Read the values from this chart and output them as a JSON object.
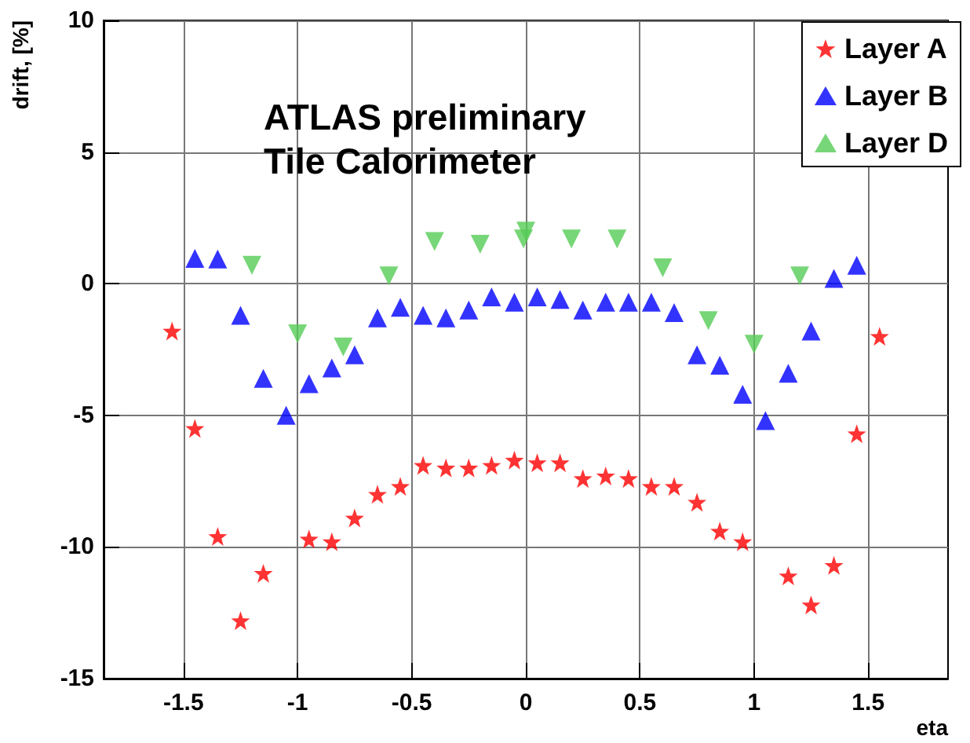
{
  "chart_data": {
    "type": "scatter",
    "xlabel": "eta",
    "ylabel": "drift, [%]",
    "annotations": [
      "ATLAS preliminary",
      "Tile Calorimeter"
    ],
    "xlim": [
      -1.85,
      1.85
    ],
    "xticks": [
      -1.5,
      -1,
      -0.5,
      0,
      0.5,
      1,
      1.5
    ],
    "ylim": [
      -15,
      10
    ],
    "yticks": [
      -15,
      -10,
      -5,
      0,
      5,
      10
    ],
    "grid": true,
    "legend": "top right",
    "series": [
      {
        "name": "Layer A",
        "color": "#ff0000",
        "marker": "star",
        "x": [
          -1.55,
          -1.45,
          -1.35,
          -1.25,
          -1.15,
          -0.95,
          -0.85,
          -0.75,
          -0.65,
          -0.55,
          -0.45,
          -0.35,
          -0.25,
          -0.15,
          -0.05,
          0.05,
          0.15,
          0.25,
          0.35,
          0.45,
          0.55,
          0.65,
          0.75,
          0.85,
          0.95,
          1.15,
          1.25,
          1.35,
          1.45,
          1.55
        ],
        "values": [
          -1.8,
          -5.5,
          -9.6,
          -12.8,
          -11.0,
          -9.7,
          -9.8,
          -8.9,
          -8.0,
          -7.7,
          -6.9,
          -7.0,
          -7.0,
          -6.9,
          -6.7,
          -6.8,
          -6.8,
          -7.4,
          -7.3,
          -7.4,
          -7.7,
          -7.7,
          -8.3,
          -9.4,
          -9.8,
          -11.1,
          -12.2,
          -10.7,
          -5.7,
          -2.0
        ]
      },
      {
        "name": "Layer B",
        "color": "#0000ff",
        "marker": "triangle",
        "x": [
          -1.45,
          -1.35,
          -1.25,
          -1.15,
          -1.05,
          -0.95,
          -0.85,
          -0.75,
          -0.65,
          -0.55,
          -0.45,
          -0.35,
          -0.25,
          -0.15,
          -0.05,
          0.05,
          0.15,
          0.25,
          0.35,
          0.45,
          0.55,
          0.65,
          0.75,
          0.85,
          0.95,
          1.05,
          1.15,
          1.25,
          1.35,
          1.45
        ],
        "values": [
          0.96,
          0.94,
          -1.2,
          -3.6,
          -5.0,
          -3.8,
          -3.2,
          -2.7,
          -1.3,
          -0.9,
          -1.2,
          -1.3,
          -1.0,
          -0.5,
          -0.7,
          -0.5,
          -0.6,
          -1.0,
          -0.7,
          -0.7,
          -0.7,
          -1.1,
          -2.7,
          -3.1,
          -4.2,
          -5.2,
          -3.4,
          -1.8,
          0.2,
          0.7
        ]
      },
      {
        "name": "Layer D",
        "color": "#55cc55",
        "marker": "triangle-down",
        "x": [
          -1.2,
          -1.0,
          -0.8,
          -0.6,
          -0.4,
          -0.2,
          -0.01,
          0.0,
          0.2,
          0.4,
          0.6,
          0.8,
          1.0,
          1.2
        ],
        "values": [
          0.7,
          -1.9,
          -2.4,
          0.3,
          1.6,
          1.5,
          1.7,
          2.0,
          1.7,
          1.7,
          0.6,
          -1.4,
          -2.3,
          0.3
        ]
      }
    ]
  }
}
